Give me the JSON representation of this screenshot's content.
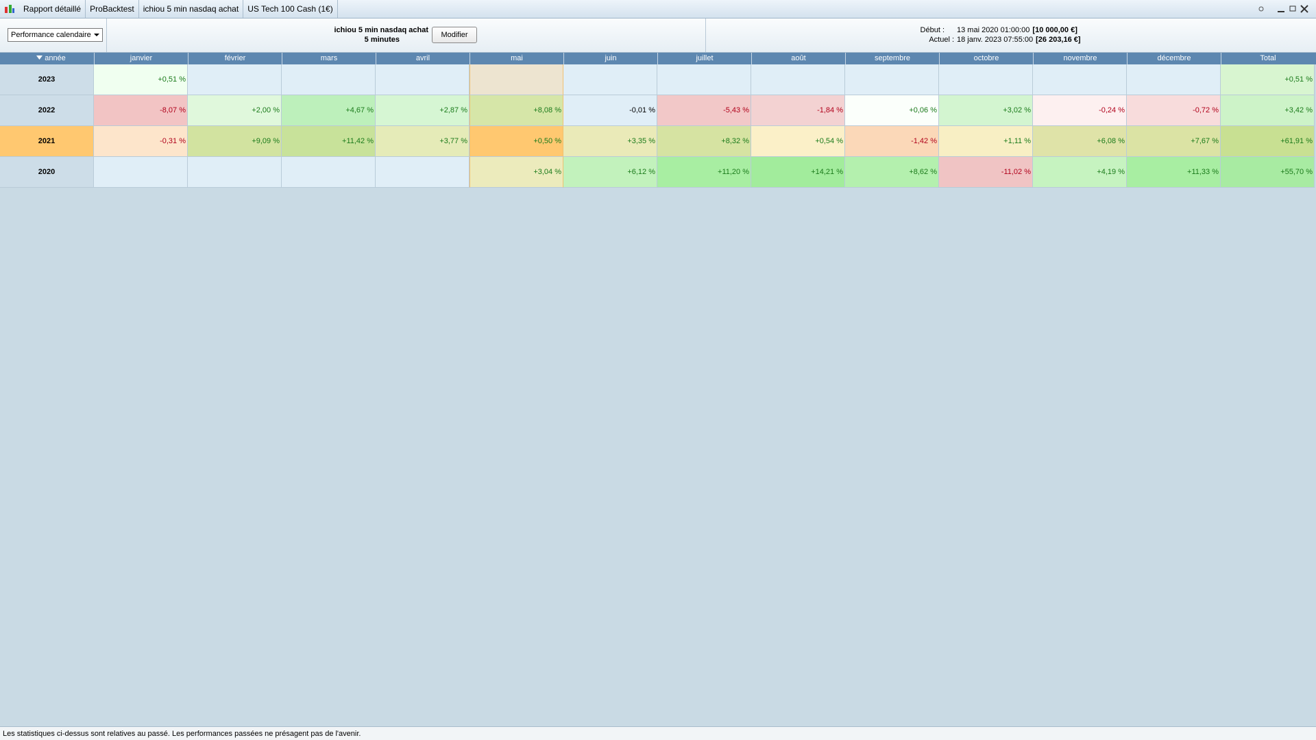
{
  "tabs": [
    "Rapport détaillé",
    "ProBacktest",
    "ichiou 5 min nasdaq achat",
    "US Tech 100 Cash (1€)"
  ],
  "toolbar": {
    "dropdown": "Performance calendaire",
    "strategy": "ichiou 5 min nasdaq achat",
    "timeframe": "5 minutes",
    "button": "Modifier",
    "start_label": "Début :",
    "start_date": "13 mai 2020 01:00:00",
    "start_capital": "[10 000,00 €]",
    "current_label": "Actuel :",
    "current_date": "18 janv. 2023 07:55:00",
    "current_capital": "[26 203,16 €]"
  },
  "table": {
    "header": [
      "année",
      "janvier",
      "février",
      "mars",
      "avril",
      "mai",
      "juin",
      "juillet",
      "août",
      "septembre",
      "octobre",
      "novembre",
      "décembre",
      "Total"
    ],
    "rows": [
      [
        "2023",
        "+0,51 %",
        null,
        null,
        null,
        null,
        null,
        null,
        null,
        null,
        null,
        null,
        null,
        "+0,51 %"
      ],
      [
        "2022",
        "-8,07 %",
        "+2,00 %",
        "+4,67 %",
        "+2,87 %",
        "+8,08 %",
        "-0,01 %",
        "-5,43 %",
        "-1,84 %",
        "+0,06 %",
        "+3,02 %",
        "-0,24 %",
        "-0,72 %",
        "+3,42 %"
      ],
      [
        "2021",
        "-0,31 %",
        "+9,09 %",
        "+11,42 %",
        "+3,77 %",
        "+0,50 %",
        "+3,35 %",
        "+8,32 %",
        "+0,54 %",
        "-1,42 %",
        "+1,11 %",
        "+6,08 %",
        "+7,67 %",
        "+61,91 %"
      ],
      [
        "2020",
        null,
        null,
        null,
        null,
        "+3,04 %",
        "+6,12 %",
        "+11,20 %",
        "+14,21 %",
        "+8,62 %",
        "-11,02 %",
        "+4,19 %",
        "+11,33 %",
        "+55,70 %"
      ]
    ]
  },
  "footer": "Les statistiques ci-dessus sont relatives au passé. Les performances passées ne présagent pas de l'avenir."
}
